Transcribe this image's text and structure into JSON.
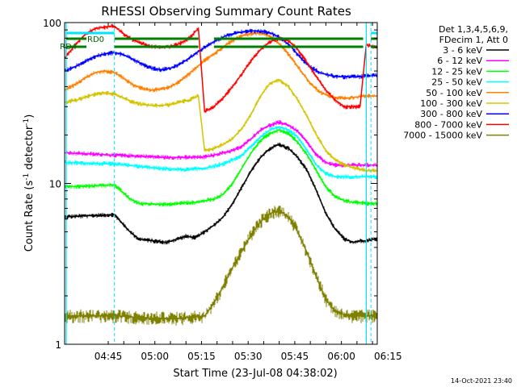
{
  "chart_data": {
    "type": "line",
    "title": "RHESSI Observing Summary Count Rates",
    "xlabel": "Start Time (23-Jul-08 04:38:02)",
    "ylabel": "Count Rate (s⁻¹ detector⁻¹)",
    "ylabel_parts": [
      "Count Rate (s",
      "-1",
      " detector",
      "-1",
      ")"
    ],
    "yscale": "log",
    "ylim": [
      1,
      100
    ],
    "xlim_minutes": [
      -7.03,
      93.53
    ],
    "x_tick_labels": [
      "04:45",
      "05:00",
      "05:15",
      "05:30",
      "05:45",
      "06:00",
      "06:15"
    ],
    "y_tick_labels": [
      "1",
      "10",
      "100"
    ],
    "legend": {
      "placement": "right",
      "header": [
        "Det 1,3,4,5,6,9,",
        "FDecim 1, Att 0"
      ],
      "entries": [
        {
          "label": "3 - 6 keV",
          "color": "#000000"
        },
        {
          "label": "6 - 12 keV",
          "color": "#ff00ff"
        },
        {
          "label": "12 - 25 keV",
          "color": "#00ff00"
        },
        {
          "label": "25 - 50 keV",
          "color": "#00ffff"
        },
        {
          "label": "50 - 100 keV",
          "color": "#ff8000"
        },
        {
          "label": "100 - 300 keV",
          "color": "#d4c400"
        },
        {
          "label": "300 - 800 keV",
          "color": "#0000ff"
        },
        {
          "label": "800 - 7000 keV",
          "color": "#ff0000"
        },
        {
          "label": "7000 - 15000 keV",
          "color": "#808000"
        }
      ]
    },
    "annotations": {
      "rd0": "RD0",
      "rd4": "RD4",
      "footer_timestamp": "14-Oct-2021 23:40"
    },
    "markers": {
      "vertical_cyan_solid_min": [
        -6.5,
        90
      ],
      "vertical_cyan_dashed_min": [
        9,
        91.5
      ],
      "cyan_bar_segments_min": [
        [
          -6.5,
          9
        ],
        [
          91.5,
          93.5
        ]
      ],
      "green_bar_segments_min": [
        [
          -6.5,
          0
        ],
        [
          9,
          36
        ],
        [
          41,
          89
        ],
        [
          91.5,
          93.5
        ]
      ]
    },
    "series": [
      {
        "name": "3 - 6 keV",
        "color": "#000000",
        "x": [
          -7,
          9,
          14,
          17,
          26,
          29,
          32,
          35,
          38,
          41,
          44,
          47,
          50,
          53,
          56,
          59,
          62,
          65,
          68,
          71,
          74,
          77,
          80,
          83,
          86,
          88,
          90,
          92,
          93.5
        ],
        "y": [
          6.2,
          6.4,
          5.0,
          4.5,
          4.3,
          4.5,
          4.7,
          4.6,
          5.0,
          5.5,
          6.2,
          7.5,
          9.5,
          12,
          14.5,
          16.5,
          17.5,
          16.5,
          14.5,
          12,
          9,
          6.5,
          5.2,
          4.5,
          4.3,
          4.4,
          4.4,
          4.5,
          4.5
        ]
      },
      {
        "name": "6 - 12 keV",
        "color": "#ff00ff",
        "x": [
          -7,
          9,
          20,
          26,
          32,
          38,
          41,
          44,
          47,
          50,
          53,
          56,
          59,
          62,
          65,
          68,
          71,
          74,
          77,
          80,
          83,
          86,
          88,
          90,
          93.5
        ],
        "y": [
          15.5,
          15,
          14.7,
          14.5,
          14.5,
          14.6,
          15,
          15.5,
          16,
          17,
          19,
          21.5,
          23,
          24,
          23,
          21,
          18,
          15,
          13.5,
          13,
          13,
          13,
          13,
          13,
          13
        ]
      },
      {
        "name": "12 - 25 keV",
        "color": "#00ff00",
        "x": [
          -7,
          9,
          14,
          17,
          26,
          29,
          32,
          35,
          38,
          41,
          44,
          47,
          50,
          53,
          56,
          59,
          62,
          65,
          68,
          71,
          74,
          77,
          80,
          83,
          86,
          88,
          90,
          92,
          93.5
        ],
        "y": [
          9.5,
          9.8,
          8.0,
          7.5,
          7.4,
          7.5,
          7.6,
          7.6,
          7.8,
          8.0,
          8.6,
          10.0,
          12.5,
          15.5,
          18.5,
          20.5,
          21.5,
          20.5,
          18,
          15,
          12,
          9.5,
          8.3,
          7.8,
          7.6,
          7.6,
          7.5,
          7.5,
          7.5
        ]
      },
      {
        "name": "25 - 50 keV",
        "color": "#00ffff",
        "x": [
          -7,
          9,
          20,
          26,
          32,
          38,
          41,
          44,
          47,
          50,
          53,
          56,
          59,
          62,
          65,
          68,
          71,
          74,
          77,
          80,
          83,
          86,
          88,
          90,
          93.5
        ],
        "y": [
          13.5,
          13.2,
          12.6,
          12.3,
          12.2,
          12.4,
          12.8,
          13.2,
          14,
          15,
          17,
          19.5,
          21.5,
          22.5,
          21.5,
          19.5,
          16,
          13,
          11.5,
          11,
          11,
          11,
          11,
          11,
          11
        ]
      },
      {
        "name": "50 - 100 keV",
        "color": "#ff8000",
        "x": [
          -7,
          -3,
          0,
          3,
          6,
          9,
          12,
          15,
          18,
          21,
          24,
          27,
          30,
          33,
          36,
          39,
          42,
          45,
          48,
          51,
          54,
          57,
          60,
          63,
          66,
          69,
          72,
          75,
          78,
          81,
          84,
          87,
          90,
          92,
          93.5
        ],
        "y": [
          38,
          42,
          46,
          49,
          50,
          49,
          45,
          41,
          39,
          38,
          38.5,
          40,
          43,
          48,
          54,
          60,
          66,
          73,
          79,
          84,
          86,
          85,
          80,
          71,
          60,
          50,
          42,
          37,
          35,
          34,
          34,
          34.5,
          35,
          35,
          35
        ]
      },
      {
        "name": "100 - 300 keV",
        "color": "#d4c400",
        "x": [
          -7,
          -3,
          0,
          3,
          6,
          9,
          12,
          15,
          18,
          21,
          24,
          27,
          30,
          33,
          36,
          38,
          41,
          44,
          47,
          50,
          53,
          56,
          59,
          62,
          65,
          68,
          71,
          74,
          77,
          80,
          83,
          86,
          90,
          93.5
        ],
        "y": [
          32,
          33,
          34.5,
          36,
          36.5,
          36,
          34,
          32,
          31,
          30.5,
          30.5,
          31,
          32,
          33,
          35,
          16,
          16.5,
          17.5,
          19,
          22,
          27,
          35,
          42,
          44,
          40,
          33,
          26,
          20,
          16,
          14,
          13,
          12.5,
          12,
          12
        ]
      },
      {
        "name": "300 - 800 keV",
        "color": "#0000ff",
        "x": [
          -7,
          -3,
          0,
          3,
          6,
          9,
          12,
          15,
          18,
          21,
          24,
          27,
          30,
          33,
          36,
          39,
          42,
          45,
          48,
          51,
          54,
          57,
          60,
          63,
          66,
          69,
          72,
          75,
          78,
          81,
          84,
          87,
          90,
          92,
          93.5
        ],
        "y": [
          50,
          54,
          58,
          62,
          64,
          65,
          63,
          59,
          55,
          52,
          51,
          52,
          55,
          60,
          66,
          72,
          78,
          83,
          86,
          88,
          89,
          88,
          85,
          79,
          70,
          60,
          53,
          49,
          47,
          46,
          46,
          46,
          46.5,
          47,
          47
        ]
      },
      {
        "name": "800 - 7000 keV",
        "color": "#ff0000",
        "x": [
          -7,
          -3,
          0,
          3,
          6,
          9,
          12,
          15,
          18,
          21,
          24,
          27,
          30,
          33,
          36,
          38,
          41,
          44,
          47,
          50,
          53,
          56,
          59,
          62,
          65,
          68,
          71,
          74,
          77,
          80,
          83,
          86,
          88,
          90,
          92,
          93.5
        ],
        "y": [
          60,
          75,
          86,
          92,
          94,
          95,
          85,
          78,
          74,
          71,
          70,
          71,
          74,
          80,
          92,
          28,
          30,
          34,
          40,
          48,
          58,
          68,
          76,
          80,
          77,
          68,
          56,
          46,
          38,
          33,
          30,
          30,
          30,
          73,
          71,
          71
        ]
      },
      {
        "name": "7000 - 15000 keV",
        "color": "#808000",
        "x": [
          -7,
          0,
          10,
          20,
          30,
          38,
          41,
          44,
          47,
          50,
          53,
          56,
          59,
          62,
          65,
          68,
          71,
          74,
          77,
          80,
          84,
          88,
          93.5
        ],
        "y": [
          1.5,
          1.5,
          1.5,
          1.45,
          1.45,
          1.5,
          1.8,
          2.3,
          3.0,
          3.8,
          4.8,
          5.8,
          6.5,
          6.8,
          6.2,
          5.0,
          3.7,
          2.6,
          1.9,
          1.6,
          1.5,
          1.5,
          1.5
        ]
      }
    ]
  }
}
